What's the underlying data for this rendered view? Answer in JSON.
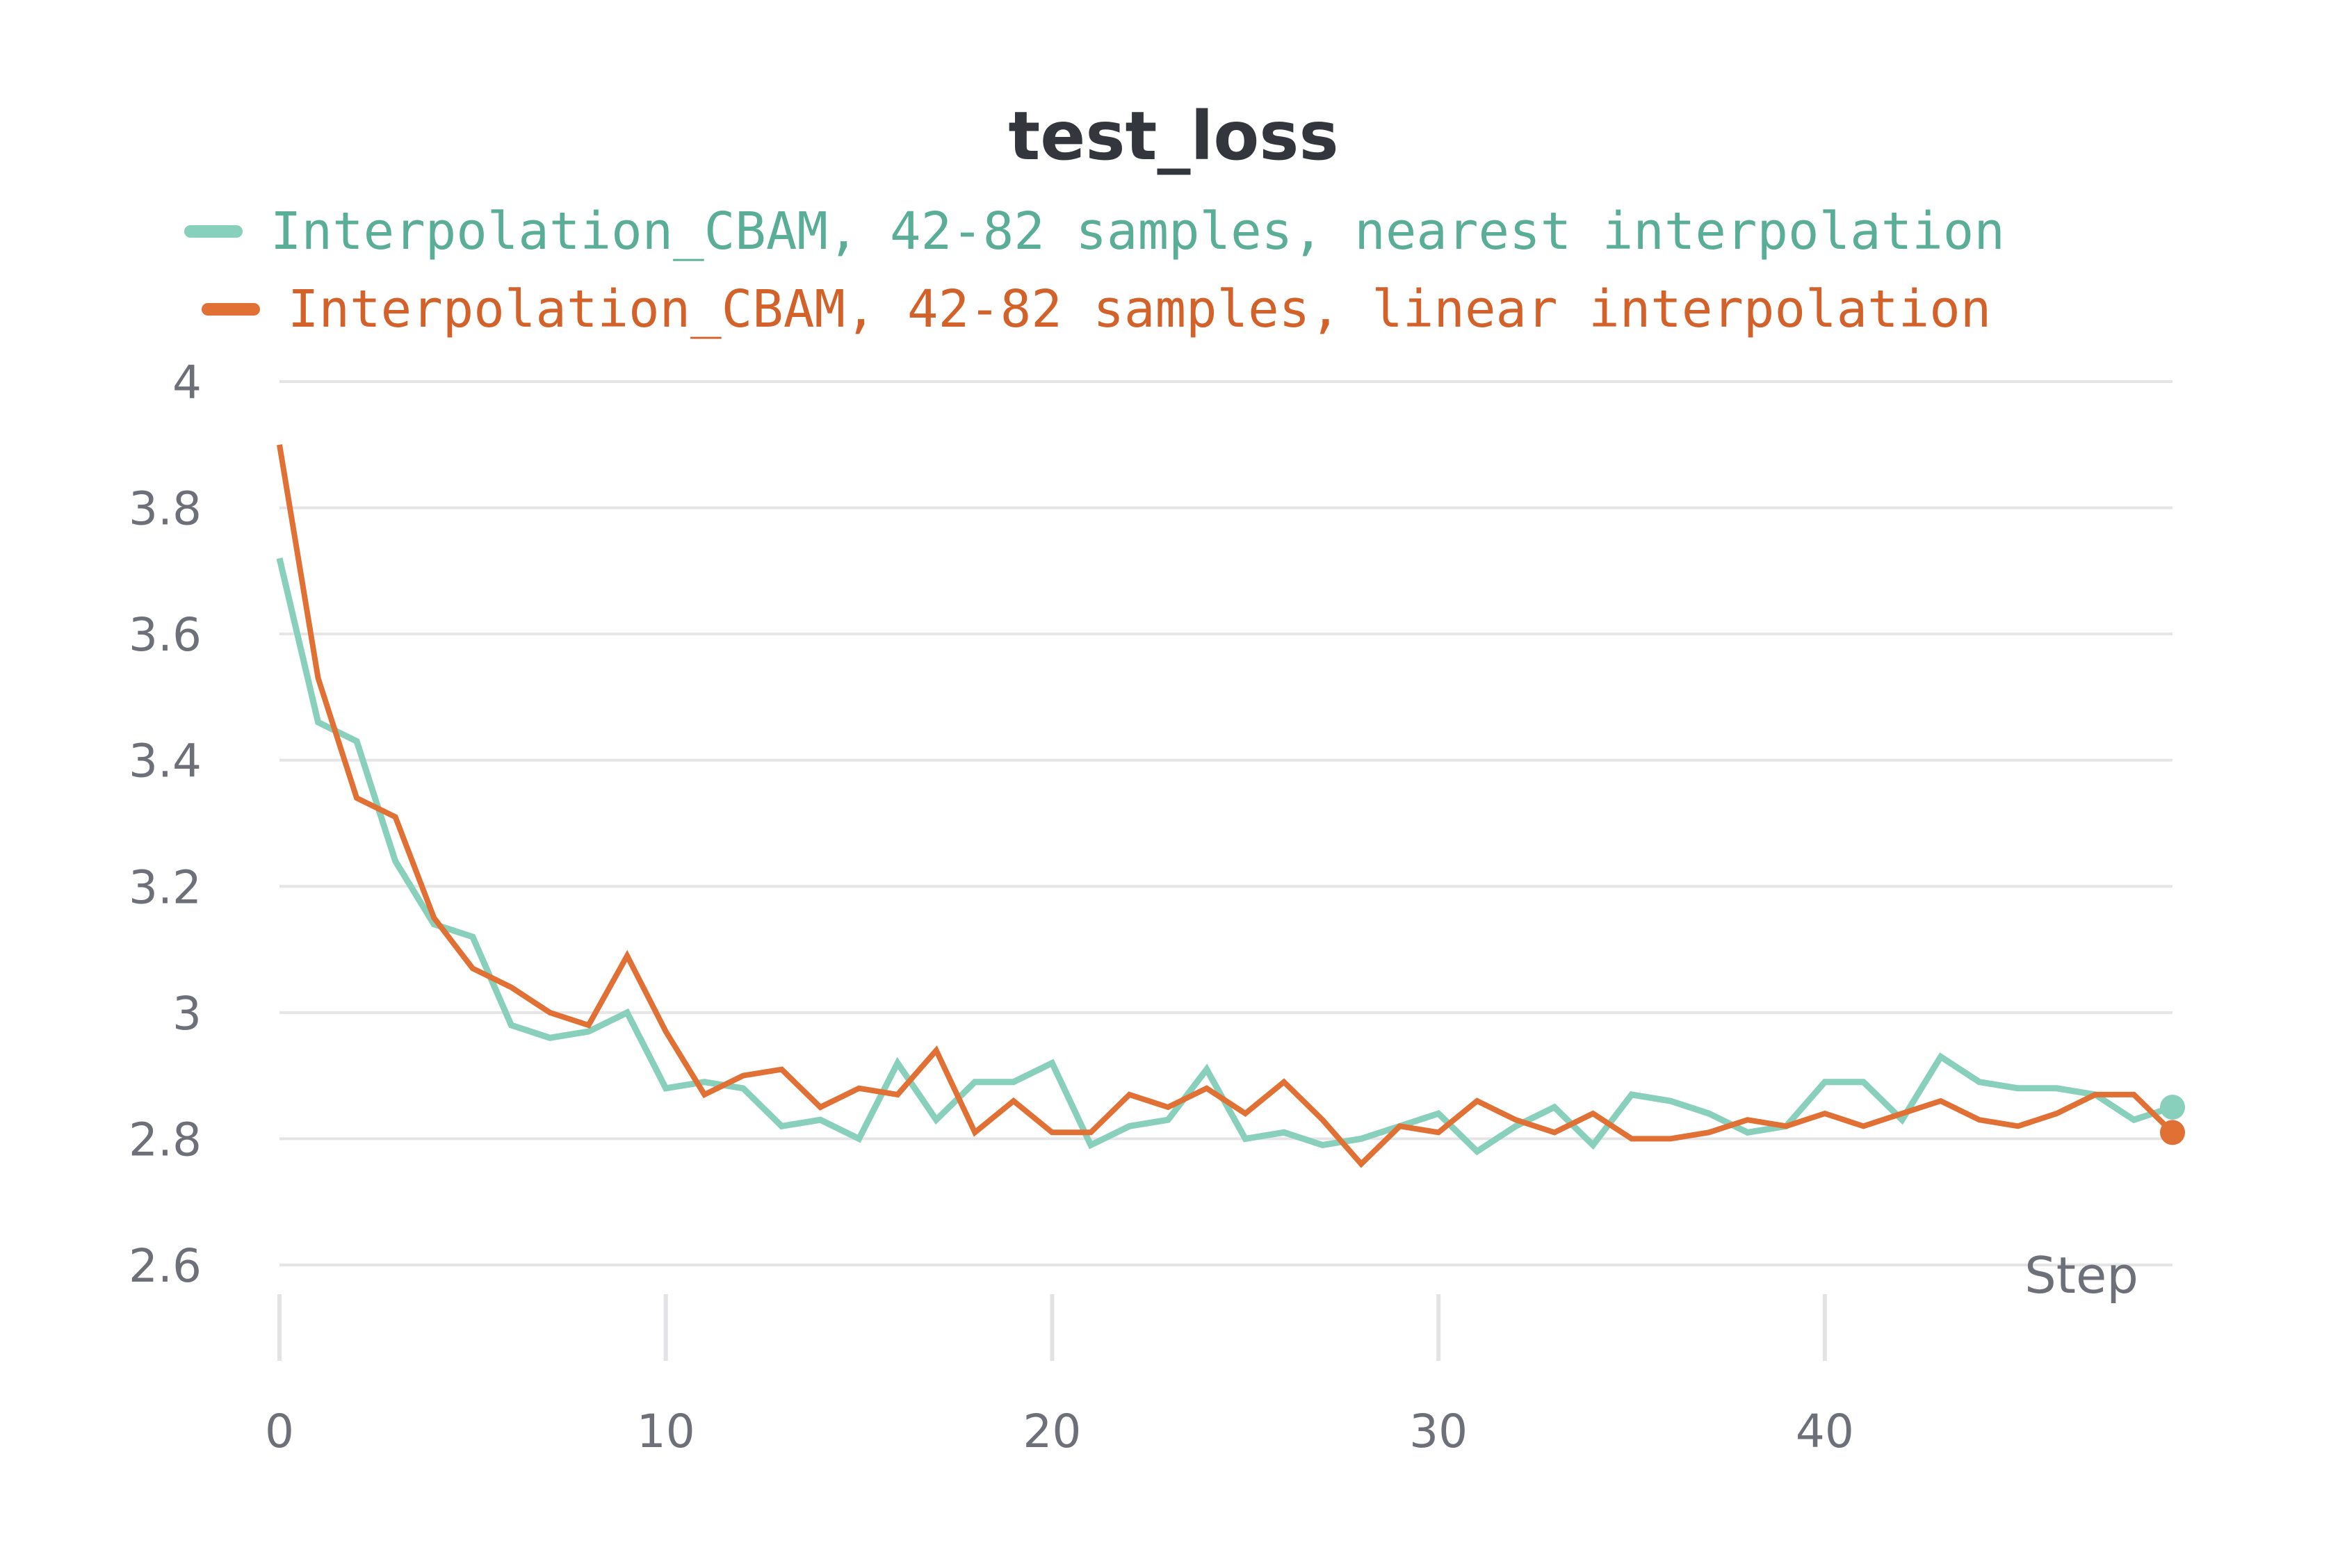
{
  "chart_data": {
    "type": "line",
    "title": "test_loss",
    "xlabel": "Step",
    "ylabel": "",
    "xlim": [
      0,
      49
    ],
    "ylim": [
      2.6,
      4
    ],
    "x_ticks": [
      0,
      10,
      20,
      30,
      40
    ],
    "y_ticks": [
      2.6,
      2.8,
      3,
      3.2,
      3.4,
      3.6,
      3.8,
      4
    ],
    "x_tick_labels": [
      "0",
      "10",
      "20",
      "30",
      "40"
    ],
    "y_tick_labels": [
      "2.6",
      "2.8",
      "3",
      "3.2",
      "3.4",
      "3.6",
      "3.8",
      "4"
    ],
    "grid": true,
    "legend_position": "top",
    "series": [
      {
        "name": "Interpolation_CBAM, 42-82 samples, nearest interpolation",
        "color": "#88d0bc",
        "x": [
          0,
          1,
          2,
          3,
          4,
          5,
          6,
          7,
          8,
          9,
          10,
          11,
          12,
          13,
          14,
          15,
          16,
          17,
          18,
          19,
          20,
          21,
          22,
          23,
          24,
          25,
          26,
          27,
          28,
          29,
          30,
          31,
          32,
          33,
          34,
          35,
          36,
          37,
          38,
          39,
          40,
          41,
          42,
          43,
          44,
          45,
          46,
          47,
          48,
          49
        ],
        "y": [
          3.72,
          3.46,
          3.43,
          3.24,
          3.14,
          3.12,
          2.98,
          2.96,
          2.97,
          3.0,
          2.88,
          2.89,
          2.88,
          2.82,
          2.83,
          2.8,
          2.92,
          2.83,
          2.89,
          2.89,
          2.92,
          2.79,
          2.82,
          2.83,
          2.91,
          2.8,
          2.81,
          2.79,
          2.8,
          2.82,
          2.84,
          2.78,
          2.82,
          2.85,
          2.79,
          2.87,
          2.86,
          2.84,
          2.81,
          2.82,
          2.89,
          2.89,
          2.83,
          2.93,
          2.89,
          2.88,
          2.88,
          2.87,
          2.83,
          2.85
        ]
      },
      {
        "name": "Interpolation_CBAM, 42-82 samples, linear interpolation",
        "color": "#e07034",
        "x": [
          0,
          1,
          2,
          3,
          4,
          5,
          6,
          7,
          8,
          9,
          10,
          11,
          12,
          13,
          14,
          15,
          16,
          17,
          18,
          19,
          20,
          21,
          22,
          23,
          24,
          25,
          26,
          27,
          28,
          29,
          30,
          31,
          32,
          33,
          34,
          35,
          36,
          37,
          38,
          39,
          40,
          41,
          42,
          43,
          44,
          45,
          46,
          47,
          48,
          49
        ],
        "y": [
          3.9,
          3.53,
          3.34,
          3.31,
          3.15,
          3.07,
          3.04,
          3.0,
          2.98,
          3.09,
          2.97,
          2.87,
          2.9,
          2.91,
          2.85,
          2.88,
          2.87,
          2.94,
          2.81,
          2.86,
          2.81,
          2.81,
          2.87,
          2.85,
          2.88,
          2.84,
          2.89,
          2.83,
          2.76,
          2.82,
          2.81,
          2.86,
          2.83,
          2.81,
          2.84,
          2.8,
          2.8,
          2.81,
          2.83,
          2.82,
          2.84,
          2.82,
          2.84,
          2.86,
          2.83,
          2.82,
          2.84,
          2.87,
          2.87,
          2.81
        ]
      }
    ]
  }
}
